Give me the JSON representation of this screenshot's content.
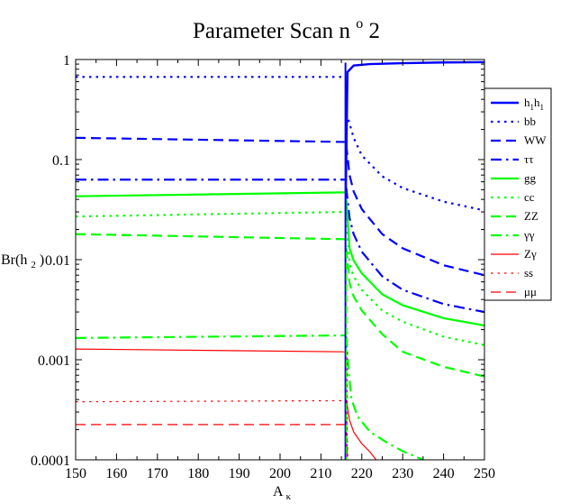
{
  "chart_data": {
    "type": "line",
    "title": "Parameter Scan",
    "title_suffix_base": "n",
    "title_suffix_sup": "o",
    "title_suffix_tail": "2",
    "xlabel": {
      "base": "A",
      "sub": "κ"
    },
    "ylabel": {
      "pre": "Br(h",
      "sub": "2",
      "post": ")"
    },
    "xlim": [
      150,
      250
    ],
    "ylim": [
      0.0001,
      1
    ],
    "yscale": "log",
    "grid": false,
    "legend_position": "right",
    "transition_x": 216,
    "x_ticks": [
      "150",
      "160",
      "170",
      "180",
      "190",
      "200",
      "210",
      "220",
      "230",
      "240",
      "250"
    ],
    "y_ticks": [
      "0.0001",
      "0.001",
      "0.01",
      "0.1",
      "1"
    ],
    "series": [
      {
        "name": "h1h1",
        "legend": {
          "a": "h",
          "as": "1",
          "b": "h",
          "bs": "1"
        },
        "color": "#0000ff",
        "style": "solid",
        "width": 2.4,
        "left": [],
        "right": [
          [
            216.1,
            0.05
          ],
          [
            216.5,
            0.75
          ],
          [
            218,
            0.87
          ],
          [
            222,
            0.9
          ],
          [
            230,
            0.92
          ],
          [
            240,
            0.935
          ],
          [
            250,
            0.94
          ]
        ]
      },
      {
        "name": "bb",
        "color": "#0000ff",
        "style": "dotted",
        "width": 2.2,
        "left": [
          [
            150,
            0.67
          ],
          [
            215.8,
            0.67
          ]
        ],
        "right": [
          [
            216.2,
            0.29
          ],
          [
            217,
            0.23
          ],
          [
            218,
            0.165
          ],
          [
            220,
            0.11
          ],
          [
            225,
            0.068
          ],
          [
            230,
            0.052
          ],
          [
            240,
            0.038
          ],
          [
            250,
            0.031
          ]
        ]
      },
      {
        "name": "WW",
        "color": "#0000ff",
        "style": "dashed",
        "width": 2.2,
        "left": [
          [
            150,
            0.165
          ],
          [
            215.8,
            0.15
          ]
        ],
        "right": [
          [
            216.2,
            0.14
          ],
          [
            217,
            0.07
          ],
          [
            218,
            0.048
          ],
          [
            220,
            0.032
          ],
          [
            225,
            0.018
          ],
          [
            230,
            0.013
          ],
          [
            240,
            0.0088
          ],
          [
            250,
            0.007
          ]
        ]
      },
      {
        "name": "ττ",
        "color": "#0000ff",
        "style": "dashdot",
        "width": 2.2,
        "left": [
          [
            150,
            0.063
          ],
          [
            215.8,
            0.063
          ]
        ],
        "right": [
          [
            216.2,
            0.052
          ],
          [
            217,
            0.026
          ],
          [
            218,
            0.018
          ],
          [
            220,
            0.012
          ],
          [
            225,
            0.0068
          ],
          [
            230,
            0.005
          ],
          [
            240,
            0.0036
          ],
          [
            250,
            0.003
          ]
        ]
      },
      {
        "name": "gg",
        "color": "#00ff00",
        "style": "solid",
        "width": 2.2,
        "left": [
          [
            150,
            0.043
          ],
          [
            215.8,
            0.047
          ]
        ],
        "right": [
          [
            216.2,
            0.04
          ],
          [
            217,
            0.013
          ],
          [
            218,
            0.0098
          ],
          [
            220,
            0.0073
          ],
          [
            225,
            0.0045
          ],
          [
            230,
            0.0035
          ],
          [
            240,
            0.0026
          ],
          [
            250,
            0.0022
          ]
        ]
      },
      {
        "name": "cc",
        "color": "#00ff00",
        "style": "dotted",
        "width": 2.2,
        "left": [
          [
            150,
            0.027
          ],
          [
            215.8,
            0.03
          ]
        ],
        "right": [
          [
            216.2,
            0.026
          ],
          [
            217,
            0.009
          ],
          [
            218,
            0.0068
          ],
          [
            220,
            0.005
          ],
          [
            225,
            0.0031
          ],
          [
            230,
            0.0024
          ],
          [
            240,
            0.0017
          ],
          [
            250,
            0.0014
          ]
        ]
      },
      {
        "name": "ZZ",
        "color": "#00ff00",
        "style": "dashed",
        "width": 2.2,
        "left": [
          [
            150,
            0.018
          ],
          [
            215.8,
            0.016
          ]
        ],
        "right": [
          [
            216.2,
            0.013
          ],
          [
            217,
            0.0058
          ],
          [
            218,
            0.0043
          ],
          [
            220,
            0.0031
          ],
          [
            225,
            0.0018
          ],
          [
            230,
            0.0012
          ],
          [
            240,
            0.00085
          ],
          [
            250,
            0.00068
          ]
        ]
      },
      {
        "name": "γγ",
        "color": "#00ff00",
        "style": "dashdot",
        "width": 2.2,
        "left": [
          [
            150,
            0.00165
          ],
          [
            215.8,
            0.00175
          ]
        ],
        "right": [
          [
            216.2,
            0.0017
          ],
          [
            216.8,
            0.00075
          ],
          [
            217.5,
            0.0004
          ],
          [
            219,
            0.00027
          ],
          [
            222,
            0.00019
          ],
          [
            226,
            0.00015
          ],
          [
            230,
            0.000122
          ],
          [
            235,
            0.0001
          ]
        ]
      },
      {
        "name": "Zγ",
        "color": "#ff0000",
        "style": "solid",
        "width": 1.2,
        "left": [
          [
            150,
            0.00128
          ],
          [
            215.8,
            0.0012
          ]
        ],
        "right": [
          [
            216.2,
            0.0004
          ],
          [
            217,
            0.00025
          ],
          [
            218,
            0.00019
          ],
          [
            220,
            0.000145
          ],
          [
            222,
            0.00012
          ],
          [
            223.5,
            0.0001
          ]
        ]
      },
      {
        "name": "ss",
        "color": "#ff0000",
        "style": "dotted",
        "width": 1.2,
        "left": [
          [
            150,
            0.00038
          ],
          [
            215.8,
            0.00039
          ]
        ],
        "right": [
          [
            216.2,
            0.00034
          ],
          [
            216.6,
            0.0001
          ]
        ]
      },
      {
        "name": "μμ",
        "color": "#ff0000",
        "style": "dashed",
        "width": 1.2,
        "left": [
          [
            150,
            0.000225
          ],
          [
            215.8,
            0.000225
          ]
        ],
        "right": [
          [
            216.2,
            0.0002
          ],
          [
            216.5,
            0.0001
          ]
        ]
      }
    ]
  }
}
